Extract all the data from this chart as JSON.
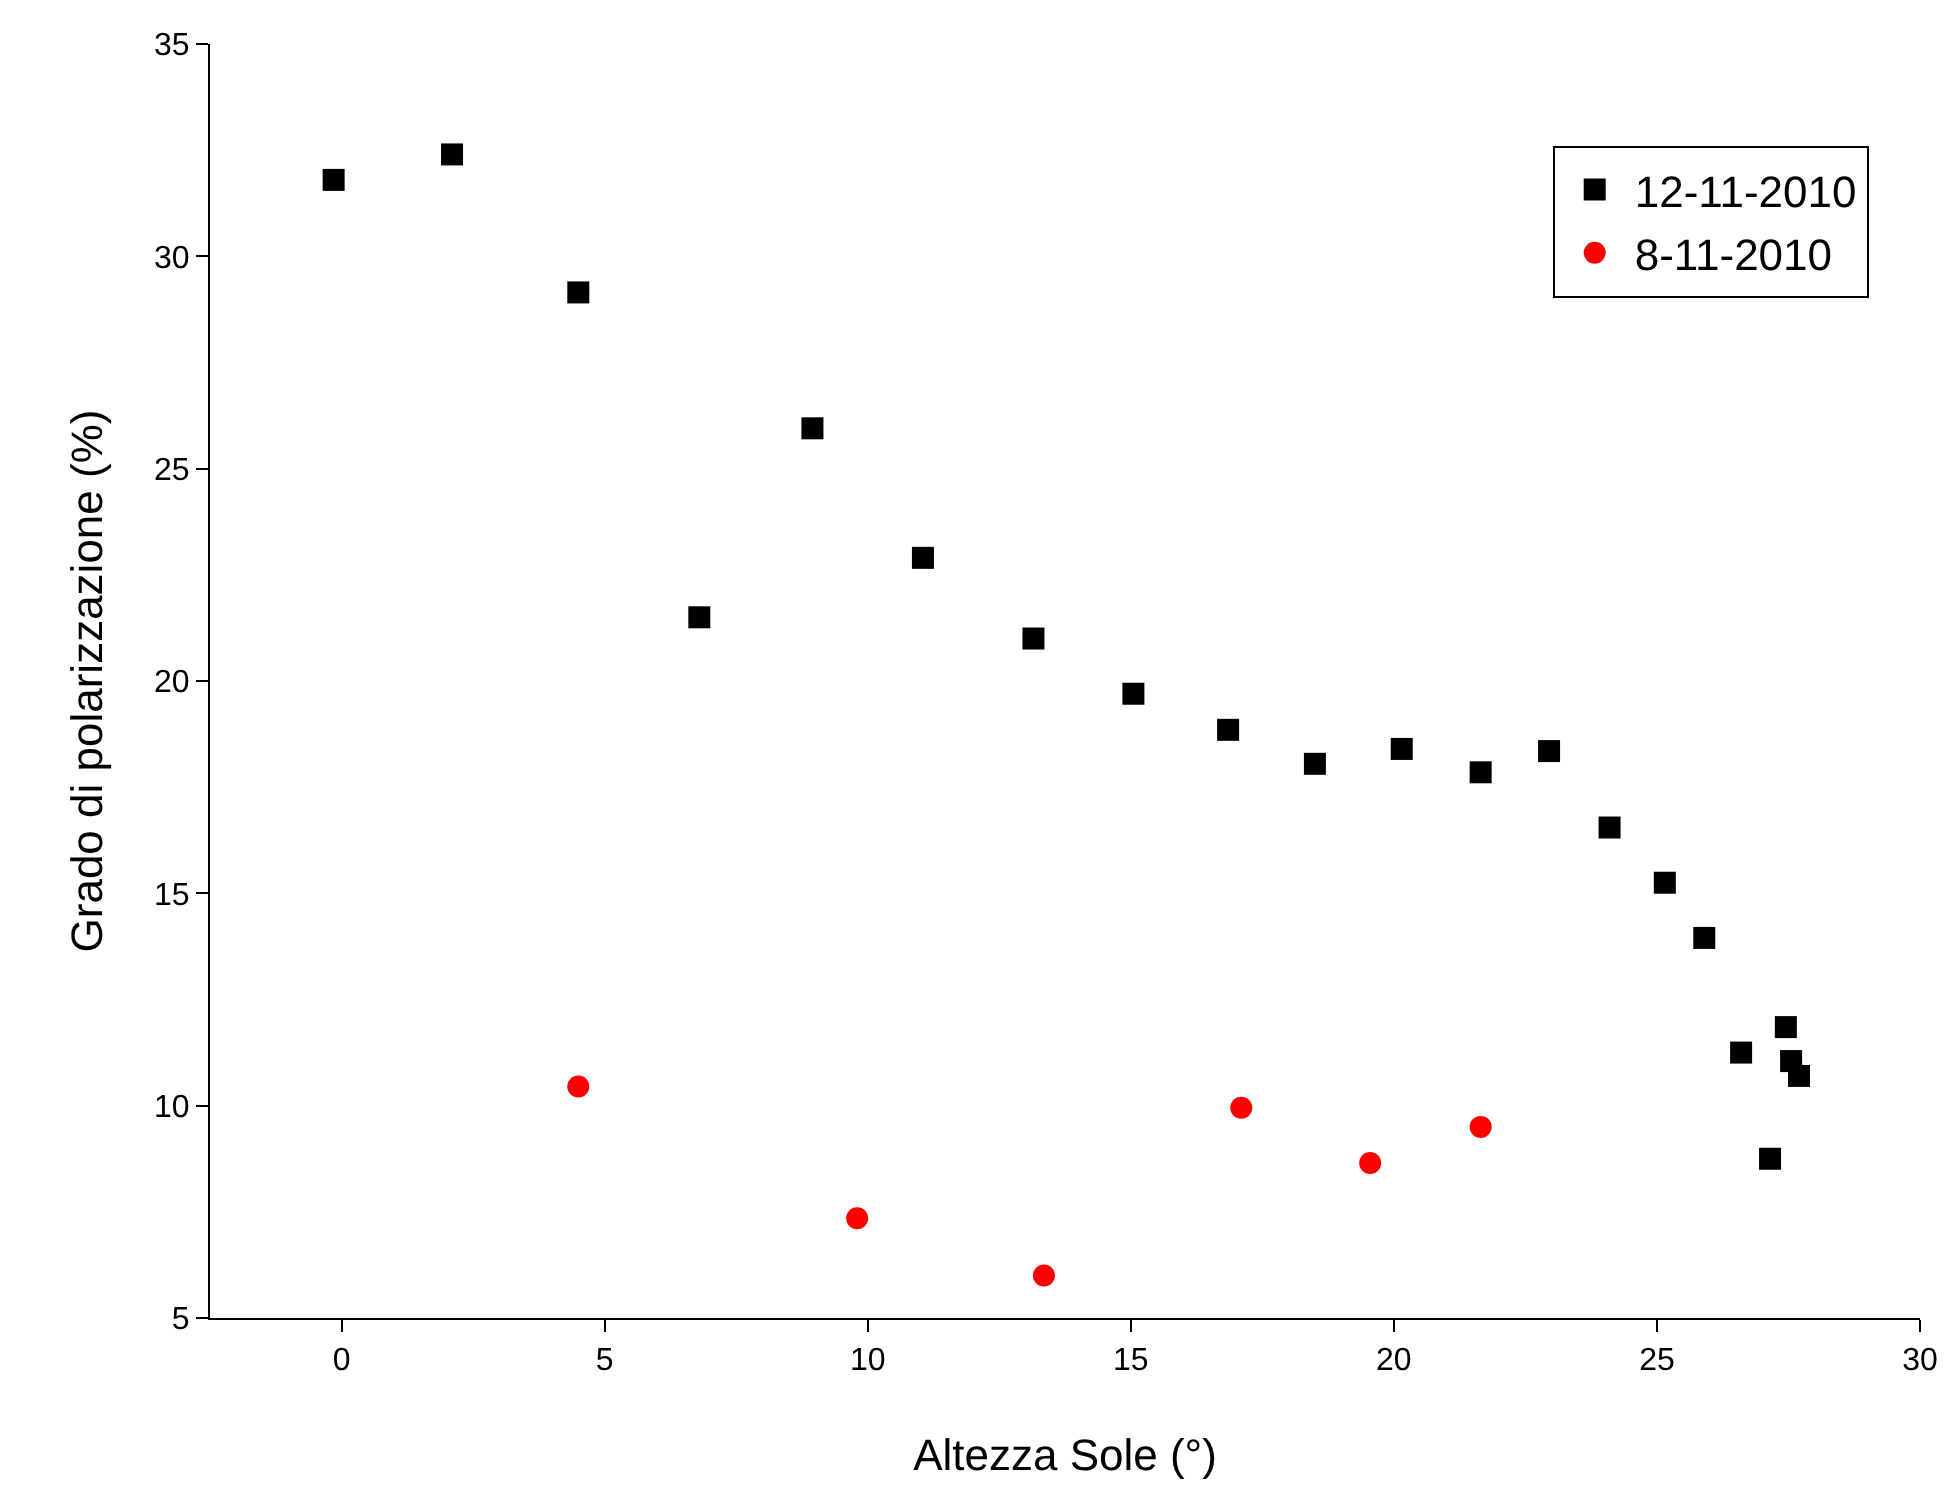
{
  "chart_data": {
    "type": "scatter",
    "xlabel": "Altezza Sole (°)",
    "ylabel": "Grado di polarizzazione (%)",
    "xlim": [
      -2.5,
      30
    ],
    "xticks": [
      0,
      5,
      10,
      15,
      20,
      25,
      30
    ],
    "ylim": [
      5,
      35
    ],
    "yticks": [
      5,
      10,
      15,
      20,
      25,
      30,
      35
    ],
    "grid": false,
    "legend": "top right",
    "series": [
      {
        "name": "12-11-2010",
        "color": "#000000",
        "marker": "square",
        "x": [
          -0.15,
          2.1,
          4.5,
          8.95,
          6.8,
          11.05,
          13.15,
          15.05,
          16.85,
          18.5,
          20.15,
          21.65,
          22.95,
          24.1,
          25.15,
          25.9,
          26.6,
          27.45,
          27.55,
          27.7,
          27.15
        ],
        "values": [
          31.8,
          32.4,
          29.15,
          25.95,
          21.5,
          22.9,
          21.0,
          19.7,
          18.85,
          18.05,
          18.4,
          17.85,
          18.35,
          16.55,
          15.25,
          13.95,
          11.25,
          11.85,
          11.05,
          10.7,
          8.75
        ]
      },
      {
        "name": "8-11-2010",
        "color": "#ff0000",
        "marker": "circle",
        "x": [
          4.5,
          9.8,
          13.35,
          17.1,
          19.55,
          21.65
        ],
        "values": [
          10.45,
          7.35,
          6.0,
          9.95,
          8.65,
          9.5
        ]
      }
    ]
  }
}
